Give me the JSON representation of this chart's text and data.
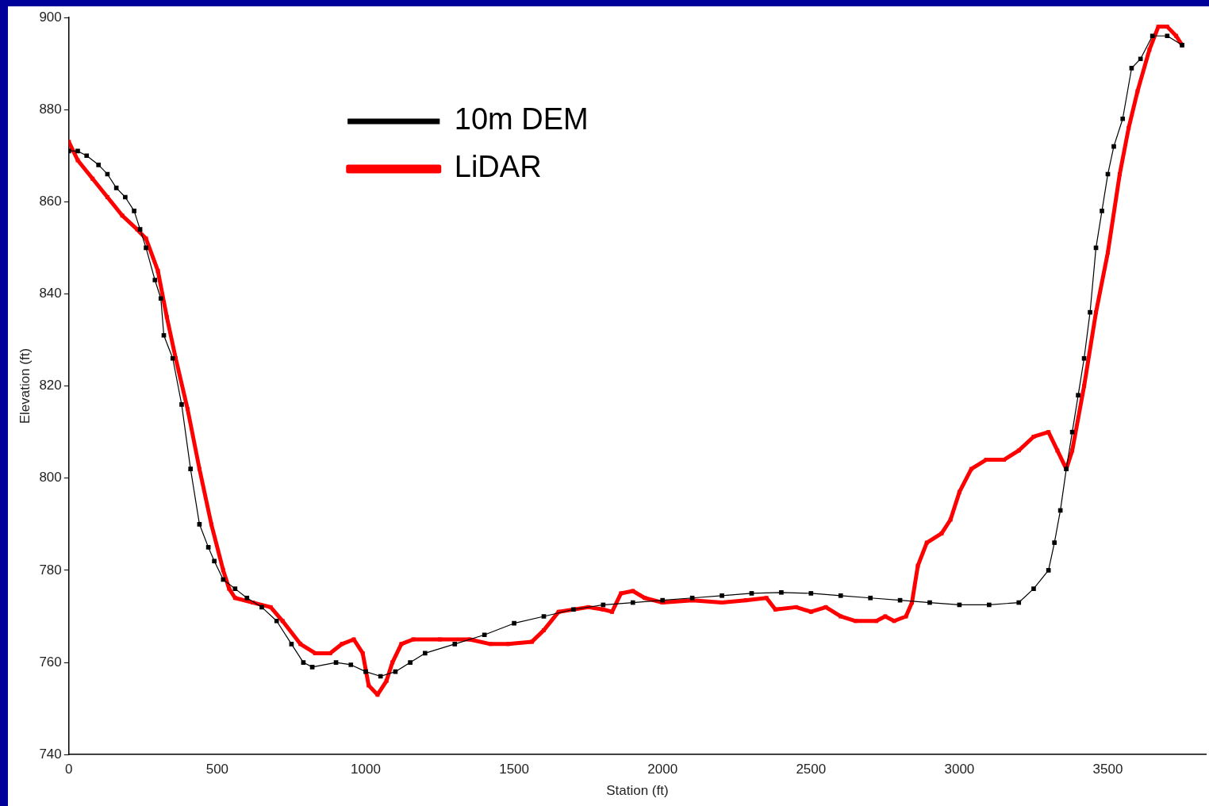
{
  "chart_data": {
    "type": "line",
    "xlabel": "Station (ft)",
    "ylabel": "Elevation (ft)",
    "xlim": [
      0,
      3830
    ],
    "xticks": [
      0,
      500,
      1000,
      1500,
      2000,
      2500,
      3000,
      3500
    ],
    "ylim": [
      740,
      900
    ],
    "yticks": [
      740,
      760,
      780,
      800,
      820,
      840,
      860,
      880,
      900
    ],
    "grid": false,
    "legend": "top left",
    "marker": "square",
    "line_style": "solid",
    "series": [
      {
        "name": "10m DEM",
        "color": "#000000",
        "x": [
          0,
          30,
          60,
          100,
          130,
          160,
          190,
          220,
          240,
          260,
          290,
          310,
          320,
          350,
          380,
          410,
          440,
          470,
          490,
          520,
          560,
          600,
          650,
          700,
          750,
          790,
          820,
          900,
          950,
          1000,
          1050,
          1100,
          1150,
          1200,
          1300,
          1400,
          1500,
          1600,
          1700,
          1800,
          1900,
          2000,
          2100,
          2200,
          2300,
          2400,
          2500,
          2600,
          2700,
          2800,
          2900,
          3000,
          3100,
          3200,
          3250,
          3300,
          3320,
          3340,
          3360,
          3380,
          3400,
          3420,
          3440,
          3460,
          3480,
          3500,
          3520,
          3550,
          3580,
          3610,
          3650,
          3700,
          3750
        ],
        "values": [
          871,
          871,
          870,
          868,
          866,
          863,
          861,
          858,
          854,
          850,
          843,
          839,
          831,
          826,
          816,
          802,
          790,
          785,
          782,
          778,
          776,
          774,
          772,
          769,
          764,
          760,
          759,
          760,
          759.5,
          758,
          757,
          758,
          760,
          762,
          764,
          766,
          768.5,
          770,
          771.5,
          772.5,
          773,
          773.5,
          774,
          774.5,
          775,
          775.2,
          775,
          774.5,
          774,
          773.5,
          773,
          772.5,
          772.5,
          773,
          776,
          780,
          786,
          793,
          802,
          810,
          818,
          826,
          836,
          850,
          858,
          866,
          872,
          878,
          889,
          891,
          896,
          896,
          894
        ]
      },
      {
        "name": "LiDAR",
        "color": "#ff0000",
        "x": [
          0,
          30,
          80,
          130,
          180,
          230,
          260,
          300,
          330,
          360,
          400,
          440,
          480,
          520,
          540,
          560,
          620,
          680,
          720,
          780,
          830,
          880,
          920,
          960,
          990,
          1010,
          1040,
          1070,
          1090,
          1120,
          1160,
          1250,
          1350,
          1420,
          1480,
          1560,
          1600,
          1650,
          1750,
          1800,
          1830,
          1860,
          1900,
          1940,
          2000,
          2100,
          2200,
          2280,
          2350,
          2380,
          2450,
          2500,
          2550,
          2600,
          2650,
          2720,
          2750,
          2780,
          2820,
          2840,
          2860,
          2890,
          2940,
          2970,
          3000,
          3040,
          3090,
          3150,
          3200,
          3250,
          3300,
          3330,
          3360,
          3380,
          3420,
          3460,
          3500,
          3540,
          3570,
          3600,
          3640,
          3670,
          3700,
          3730,
          3750
        ],
        "values": [
          873,
          869,
          865,
          861,
          857,
          854,
          852,
          845,
          835,
          826,
          815,
          802,
          790,
          780,
          776,
          774,
          773,
          772,
          769,
          764,
          762,
          762,
          764,
          765,
          762,
          755,
          753,
          756,
          760,
          764,
          765,
          765,
          765,
          764,
          764,
          764.5,
          767,
          771,
          772,
          771.5,
          771,
          775,
          775.5,
          774,
          773,
          773.5,
          773,
          773.5,
          774,
          771.5,
          772,
          771,
          772,
          770,
          769,
          769,
          770,
          769,
          770,
          773,
          781,
          786,
          788,
          791,
          797,
          802,
          804,
          804,
          806,
          809,
          810,
          806,
          802,
          806,
          820,
          836,
          849,
          866,
          876,
          884,
          893,
          898,
          898,
          896,
          894
        ]
      }
    ]
  }
}
